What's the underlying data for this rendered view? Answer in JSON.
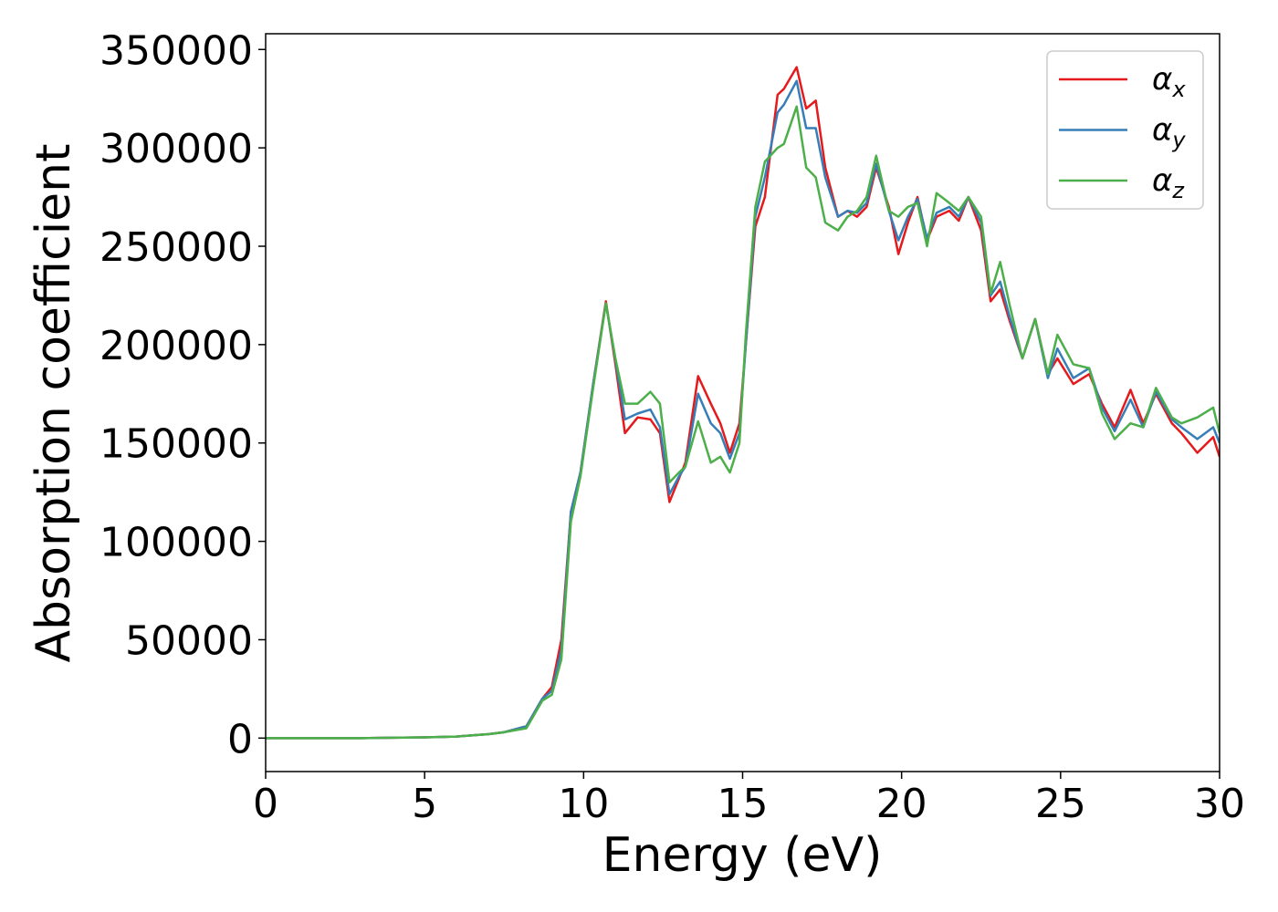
{
  "chart_data": {
    "type": "line",
    "xlabel": "Energy (eV)",
    "ylabel": "Absorption coefficient",
    "x": [
      0,
      1,
      2,
      3,
      4,
      5,
      6,
      7,
      7.5,
      8.2,
      8.7,
      9.0,
      9.3,
      9.6,
      9.9,
      10.3,
      10.7,
      11.0,
      11.3,
      11.7,
      12.1,
      12.4,
      12.7,
      13.0,
      13.2,
      13.6,
      14.0,
      14.3,
      14.6,
      14.9,
      15.1,
      15.4,
      15.7,
      16.1,
      16.3,
      16.7,
      17.0,
      17.3,
      17.6,
      18.0,
      18.3,
      18.6,
      18.9,
      19.2,
      19.6,
      19.9,
      20.2,
      20.5,
      20.8,
      21.1,
      21.5,
      21.8,
      22.1,
      22.5,
      22.8,
      23.1,
      23.4,
      23.8,
      24.2,
      24.6,
      24.9,
      25.4,
      25.9,
      26.3,
      26.7,
      27.2,
      27.6,
      28.0,
      28.5,
      28.8,
      29.3,
      29.8,
      30
    ],
    "series": [
      {
        "name": "αx",
        "color": "#e41a1c",
        "values": [
          0,
          0,
          0,
          0,
          200,
          400,
          800,
          2000,
          3000,
          6000,
          20000,
          26000,
          50000,
          115000,
          135000,
          180000,
          222000,
          190000,
          155000,
          163000,
          162000,
          155000,
          120000,
          132000,
          140000,
          184000,
          170000,
          160000,
          145000,
          160000,
          200000,
          260000,
          275000,
          327000,
          330000,
          341000,
          320000,
          324000,
          290000,
          265000,
          268000,
          265000,
          270000,
          290000,
          270000,
          246000,
          262000,
          275000,
          253000,
          265000,
          268000,
          263000,
          275000,
          258000,
          222000,
          228000,
          212000,
          193000,
          213000,
          185000,
          193000,
          180000,
          185000,
          170000,
          158000,
          177000,
          160000,
          175000,
          160000,
          155000,
          145000,
          153000,
          143000
        ]
      },
      {
        "name": "αy",
        "color": "#377eb8",
        "values": [
          0,
          0,
          0,
          0,
          200,
          400,
          800,
          2000,
          3000,
          6000,
          20000,
          24000,
          45000,
          115000,
          135000,
          180000,
          221000,
          192000,
          162000,
          165000,
          167000,
          158000,
          124000,
          133000,
          138000,
          175000,
          160000,
          155000,
          142000,
          155000,
          200000,
          265000,
          285000,
          318000,
          322000,
          334000,
          310000,
          310000,
          285000,
          265000,
          268000,
          267000,
          272000,
          292000,
          268000,
          253000,
          265000,
          274000,
          254000,
          267000,
          270000,
          265000,
          275000,
          262000,
          225000,
          232000,
          214000,
          193000,
          213000,
          183000,
          198000,
          183000,
          188000,
          168000,
          156000,
          172000,
          158000,
          176000,
          162000,
          158000,
          152000,
          158000,
          150000
        ]
      },
      {
        "name": "αz",
        "color": "#4daf4a",
        "values": [
          0,
          0,
          0,
          0,
          200,
          400,
          800,
          2000,
          3000,
          5000,
          19000,
          22000,
          40000,
          110000,
          133000,
          178000,
          221000,
          193000,
          170000,
          170000,
          176000,
          170000,
          130000,
          135000,
          138000,
          161000,
          140000,
          143000,
          135000,
          150000,
          205000,
          270000,
          293000,
          300000,
          302000,
          321000,
          290000,
          285000,
          262000,
          258000,
          265000,
          268000,
          275000,
          296000,
          268000,
          265000,
          270000,
          272000,
          250000,
          277000,
          272000,
          268000,
          275000,
          265000,
          226000,
          242000,
          220000,
          193000,
          213000,
          185000,
          205000,
          190000,
          188000,
          165000,
          152000,
          160000,
          158000,
          178000,
          163000,
          160000,
          163000,
          168000,
          155000
        ]
      }
    ],
    "xlim": [
      0,
      30
    ],
    "xticks": [
      0,
      5,
      10,
      15,
      20,
      25,
      30
    ],
    "ylim": [
      -17000,
      358000
    ],
    "yticks": [
      0,
      50000,
      100000,
      150000,
      200000,
      250000,
      300000,
      350000
    ],
    "grid": false,
    "legend": "upper right"
  }
}
